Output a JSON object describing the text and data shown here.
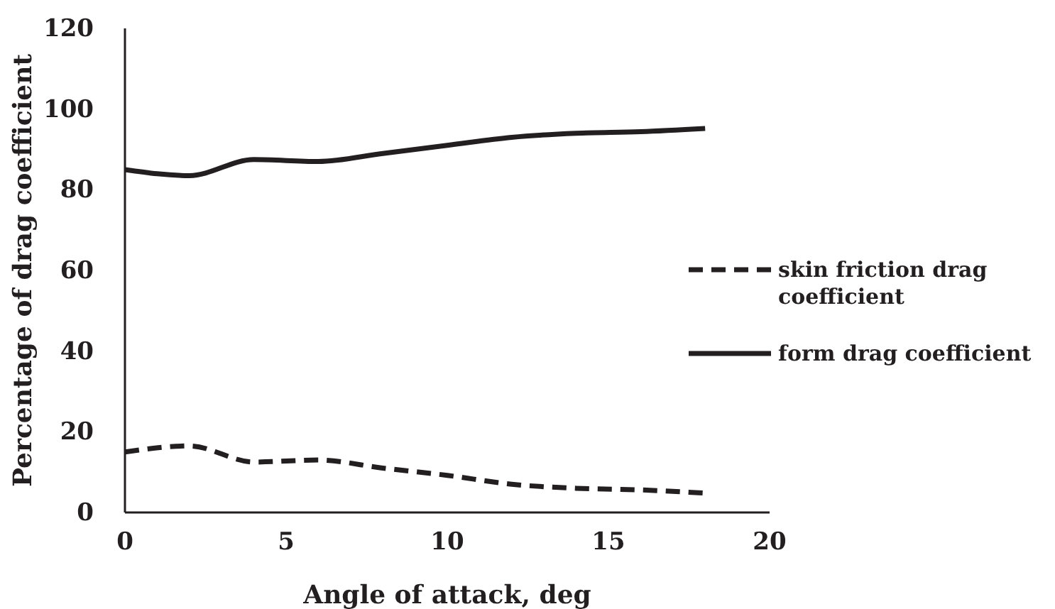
{
  "chart_data": {
    "type": "line",
    "xlabel": "Angle of attack, deg",
    "ylabel": "Percentage of drag coefficient",
    "x": [
      0,
      2,
      4,
      6,
      8,
      10,
      12,
      14,
      16,
      18
    ],
    "series": [
      {
        "name": "skin friction drag coefficient",
        "color": "#231f20",
        "line_style": "dashed",
        "values": [
          15,
          16.5,
          12.5,
          13,
          11,
          9.2,
          7,
          6,
          5.6,
          4.8
        ]
      },
      {
        "name": "form drag coefficient",
        "color": "#231f20",
        "line_style": "solid",
        "values": [
          85,
          83.5,
          87.5,
          87,
          89,
          91,
          93,
          94,
          94.4,
          95.2
        ]
      }
    ],
    "xlim": [
      0,
      20
    ],
    "xticks": [
      0,
      5,
      10,
      15,
      20
    ],
    "ylim": [
      0,
      120
    ],
    "yticks": [
      0,
      20,
      40,
      60,
      80,
      100,
      120
    ],
    "grid": false,
    "legend": "right",
    "marker": "none"
  }
}
